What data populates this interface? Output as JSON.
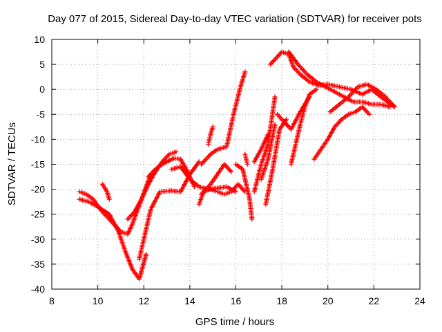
{
  "chart_data": {
    "type": "scatter",
    "title": "Day 077 of 2015, Sidereal Day-to-day VTEC variation (SDTVAR) for receiver pots",
    "xlabel": "GPS time / hours",
    "ylabel": "SDTVAR / TECUs",
    "xlim": [
      8,
      24
    ],
    "ylim": [
      -40,
      10
    ],
    "xticks": [
      8,
      10,
      12,
      14,
      16,
      18,
      20,
      22,
      24
    ],
    "yticks": [
      -40,
      -35,
      -30,
      -25,
      -20,
      -15,
      -10,
      -5,
      0,
      5,
      10
    ],
    "grid": true,
    "marker": "+",
    "color": "#ff0000",
    "series": [
      {
        "x": [
          9.2,
          9.5,
          9.8,
          10.1,
          10.4,
          10.7,
          11.0,
          11.3,
          11.5,
          11.9,
          12.3
        ],
        "y": [
          -20.5,
          -21.0,
          -22.0,
          -24.0,
          -25.5,
          -27.0,
          -28.5,
          -29.0,
          -27.0,
          -22.0,
          -17.0
        ]
      },
      {
        "x": [
          9.2,
          9.6,
          10.0,
          10.5,
          10.9,
          11.2,
          11.5,
          11.8,
          12.1
        ],
        "y": [
          -22.0,
          -22.5,
          -23.5,
          -25.0,
          -28.5,
          -32.5,
          -36.0,
          -38.0,
          -33.0
        ]
      },
      {
        "x": [
          10.2,
          10.4,
          10.5
        ],
        "y": [
          -19.0,
          -20.5,
          -22.0
        ]
      },
      {
        "x": [
          11.8,
          12.0,
          12.3,
          12.7,
          13.2,
          13.6,
          14.0,
          14.4
        ],
        "y": [
          -34.0,
          -30.0,
          -24.0,
          -20.5,
          -20.3,
          -20.5,
          -17.0,
          -14.5
        ]
      },
      {
        "x": [
          11.3,
          11.6,
          11.9,
          12.2,
          12.5,
          12.8,
          13.1,
          13.4
        ],
        "y": [
          -26.0,
          -24.5,
          -22.0,
          -19.0,
          -16.5,
          -14.5,
          -13.0,
          -12.5
        ]
      },
      {
        "x": [
          12.2,
          12.5,
          12.8,
          13.0,
          13.3,
          13.6,
          13.9,
          14.2
        ],
        "y": [
          -17.5,
          -16.0,
          -15.0,
          -14.5,
          -13.8,
          -14.0,
          -16.5,
          -19.5
        ]
      },
      {
        "x": [
          13.2,
          13.6,
          14.0,
          14.4,
          14.8,
          15.2,
          15.6,
          16.0
        ],
        "y": [
          -16.0,
          -15.5,
          -18.0,
          -19.5,
          -20.0,
          -19.8,
          -19.5,
          -20.5
        ]
      },
      {
        "x": [
          14.4,
          14.6,
          14.9,
          15.2,
          15.5,
          15.8,
          16.1,
          16.4
        ],
        "y": [
          -23.0,
          -20.5,
          -20.0,
          -20.5,
          -21.0,
          -20.5,
          -19.0,
          -20.5
        ]
      },
      {
        "x": [
          14.5,
          14.9,
          15.2,
          15.6,
          15.9,
          16.2,
          16.4
        ],
        "y": [
          -15.0,
          -13.0,
          -12.0,
          -11.5,
          -5.0,
          0.5,
          3.5
        ]
      },
      {
        "x": [
          14.8,
          14.9,
          15.0
        ],
        "y": [
          -11.0,
          -9.0,
          -7.5
        ]
      },
      {
        "x": [
          14.5,
          14.9,
          15.2,
          15.5,
          15.8
        ],
        "y": [
          -21.0,
          -19.0,
          -17.0,
          -15.0,
          -16.5
        ]
      },
      {
        "x": [
          16.0,
          16.3,
          16.6,
          16.7
        ],
        "y": [
          -15.0,
          -16.0,
          -22.0,
          -26.0
        ]
      },
      {
        "x": [
          16.4,
          16.5
        ],
        "y": [
          -13.0,
          -15.0
        ]
      },
      {
        "x": [
          16.8,
          17.1,
          17.4,
          17.7
        ],
        "y": [
          -20.5,
          -15.0,
          -11.0,
          -1.5
        ]
      },
      {
        "x": [
          16.8,
          17.1,
          17.4
        ],
        "y": [
          -14.5,
          -12.0,
          -9.0
        ]
      },
      {
        "x": [
          17.1,
          17.4,
          17.7
        ],
        "y": [
          -18.0,
          -14.0,
          -7.0
        ]
      },
      {
        "x": [
          17.3,
          17.6,
          17.9,
          18.2
        ],
        "y": [
          -23.0,
          -16.0,
          -8.0,
          -6.0
        ]
      },
      {
        "x": [
          17.8,
          18.0,
          18.4,
          18.8,
          19.2
        ],
        "y": [
          -5.0,
          -6.0,
          -8.0,
          -4.5,
          -1.5
        ]
      },
      {
        "x": [
          17.5,
          17.8,
          18.0,
          18.3,
          18.5,
          18.8,
          19.2,
          19.6,
          20.0,
          20.5,
          21.0,
          21.5,
          21.9,
          22.3,
          22.6,
          22.9
        ],
        "y": [
          5.0,
          6.5,
          7.5,
          7.0,
          4.5,
          3.0,
          1.5,
          0.8,
          1.0,
          0.5,
          0.0,
          -1.0,
          0.0,
          -1.5,
          -2.5,
          -3.5
        ]
      },
      {
        "x": [
          18.3,
          18.7,
          19.1,
          19.5,
          19.9,
          20.3,
          20.7,
          21.1,
          21.5,
          21.9,
          22.3,
          22.7
        ],
        "y": [
          7.5,
          5.0,
          3.0,
          1.5,
          0.5,
          -0.5,
          -1.5,
          -2.5,
          -2.5,
          -3.0,
          -3.0,
          -3.5
        ]
      },
      {
        "x": [
          18.4,
          18.6,
          18.8,
          19.0,
          19.2,
          19.5
        ],
        "y": [
          -15.0,
          -11.0,
          -7.0,
          -3.5,
          -1.0,
          0.0
        ]
      },
      {
        "x": [
          19.4,
          19.7,
          20.0,
          20.3,
          20.6,
          20.9,
          21.2,
          21.5,
          21.8
        ],
        "y": [
          -14.0,
          -12.0,
          -10.0,
          -7.5,
          -6.0,
          -5.0,
          -4.5,
          -3.5,
          -5.0
        ]
      },
      {
        "x": [
          20.1,
          20.5,
          20.9,
          21.3,
          21.7,
          22.1,
          22.5,
          22.9
        ],
        "y": [
          -4.5,
          -3.0,
          -1.5,
          0.5,
          1.0,
          0.0,
          -1.5,
          -3.5
        ]
      }
    ]
  }
}
